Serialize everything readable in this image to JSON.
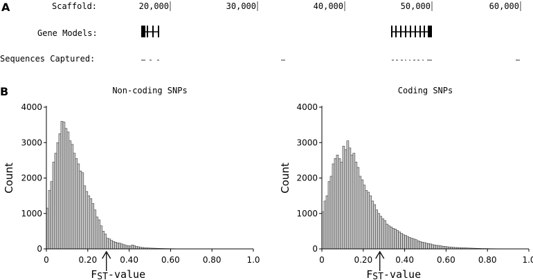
{
  "panel_a": {
    "label": "A",
    "track_labels": {
      "scaffold": "Scaffold:",
      "gene_models": "Gene Models:",
      "sequences_captured": "Sequences Captured:"
    },
    "scale_ticks": [
      "20,000",
      "30,000",
      "40,000",
      "50,000",
      "60,000"
    ]
  },
  "panel_b": {
    "label": "B"
  },
  "chart_data": [
    {
      "type": "bar",
      "title": "Non-coding SNPs",
      "xlabel_main": "F",
      "xlabel_sub": "ST",
      "xlabel_rest": "-value",
      "ylabel": "Count",
      "xlim": [
        0,
        1.0
      ],
      "ylim": [
        0,
        4000
      ],
      "bin_width": 0.01,
      "x_ticks": [
        "0",
        "0.20",
        "0.40",
        "0.60",
        "0.80",
        "1.0"
      ],
      "y_ticks": [
        "0",
        "1000",
        "2000",
        "3000",
        "4000"
      ],
      "marker_x": 0.29,
      "values": [
        1150,
        1650,
        1900,
        2450,
        2700,
        3000,
        3250,
        3600,
        3580,
        3400,
        3300,
        3050,
        2950,
        2700,
        2550,
        2400,
        2200,
        2150,
        1780,
        1620,
        1500,
        1420,
        1280,
        1100,
        900,
        820,
        650,
        500,
        420,
        300,
        280,
        240,
        210,
        190,
        170,
        160,
        140,
        120,
        100,
        90,
        80,
        110,
        95,
        70,
        60,
        45,
        40,
        30,
        28,
        25,
        22,
        20,
        18,
        15,
        14,
        12,
        10,
        9,
        8,
        7,
        6,
        5,
        4,
        4,
        3,
        3,
        2,
        2,
        2,
        1,
        1,
        1,
        1,
        1,
        0,
        0,
        0,
        0,
        0,
        0,
        0,
        0,
        0,
        0,
        0,
        0,
        0,
        0,
        0,
        0,
        0,
        0,
        0,
        0,
        0,
        0,
        0,
        0,
        0,
        0
      ]
    },
    {
      "type": "bar",
      "title": "Coding SNPs",
      "xlabel_main": "F",
      "xlabel_sub": "ST",
      "xlabel_rest": "-value",
      "ylabel": "Count",
      "xlim": [
        0,
        1.0
      ],
      "ylim": [
        0,
        4000
      ],
      "bin_width": 0.01,
      "x_ticks": [
        "0",
        "0.20",
        "0.40",
        "0.60",
        "0.80",
        "1.0"
      ],
      "y_ticks": [
        "0",
        "1000",
        "2000",
        "3000",
        "4000"
      ],
      "marker_x": 0.28,
      "values": [
        1050,
        1350,
        1500,
        1900,
        2050,
        2400,
        2550,
        2650,
        2550,
        2450,
        2900,
        2800,
        3050,
        2850,
        2650,
        2700,
        2450,
        2300,
        2050,
        1950,
        1800,
        1650,
        1600,
        1500,
        1350,
        1250,
        1100,
        1000,
        920,
        850,
        800,
        700,
        650,
        620,
        580,
        560,
        520,
        480,
        440,
        400,
        380,
        350,
        320,
        300,
        280,
        260,
        230,
        210,
        190,
        180,
        160,
        150,
        140,
        120,
        110,
        100,
        95,
        85,
        75,
        70,
        60,
        55,
        50,
        45,
        40,
        38,
        35,
        32,
        30,
        28,
        25,
        22,
        20,
        18,
        16,
        14,
        12,
        10,
        9,
        8,
        7,
        6,
        5,
        5,
        4,
        4,
        3,
        3,
        2,
        2,
        2,
        1,
        1,
        1,
        1,
        1,
        0,
        0,
        0,
        0
      ]
    }
  ]
}
